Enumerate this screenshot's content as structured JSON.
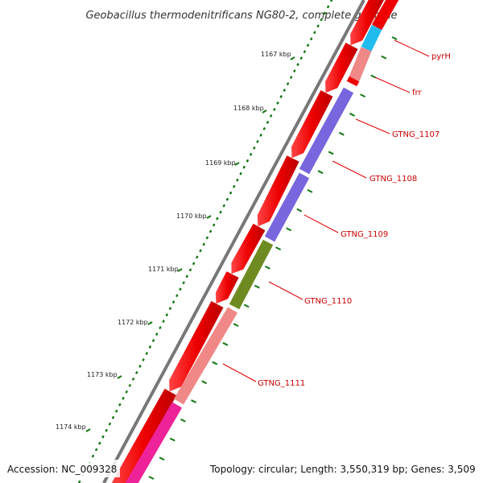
{
  "title": "Geobacillus thermodenitrificans NG80-2, complete genome",
  "footer": {
    "accession": "Accession: NC_009328",
    "topology": "Topology: circular; Length: 3,550,319 bp; Genes: 3,509"
  },
  "ticks": [
    "1167 kbp",
    "1168 kbp",
    "1169 kbp",
    "1170 kbp",
    "1171 kbp",
    "1172 kbp",
    "1173 kbp",
    "1174 kbp"
  ],
  "gene_labels": [
    "pyrH",
    "frr",
    "GTNG_1107",
    "GTNG_1108",
    "GTNG_1109",
    "GTNG_1110",
    "GTNG_1111"
  ],
  "colors": {
    "forward": "#ee0000",
    "reverse_cyan": "#22bbee",
    "reverse_pink": "#f08888",
    "reverse_purple": "#7766dd",
    "reverse_olive": "#6e8b22",
    "reverse_magenta": "#ee2299",
    "backbone": "#777777",
    "ticks": "#117711",
    "label": "#cc0000"
  }
}
